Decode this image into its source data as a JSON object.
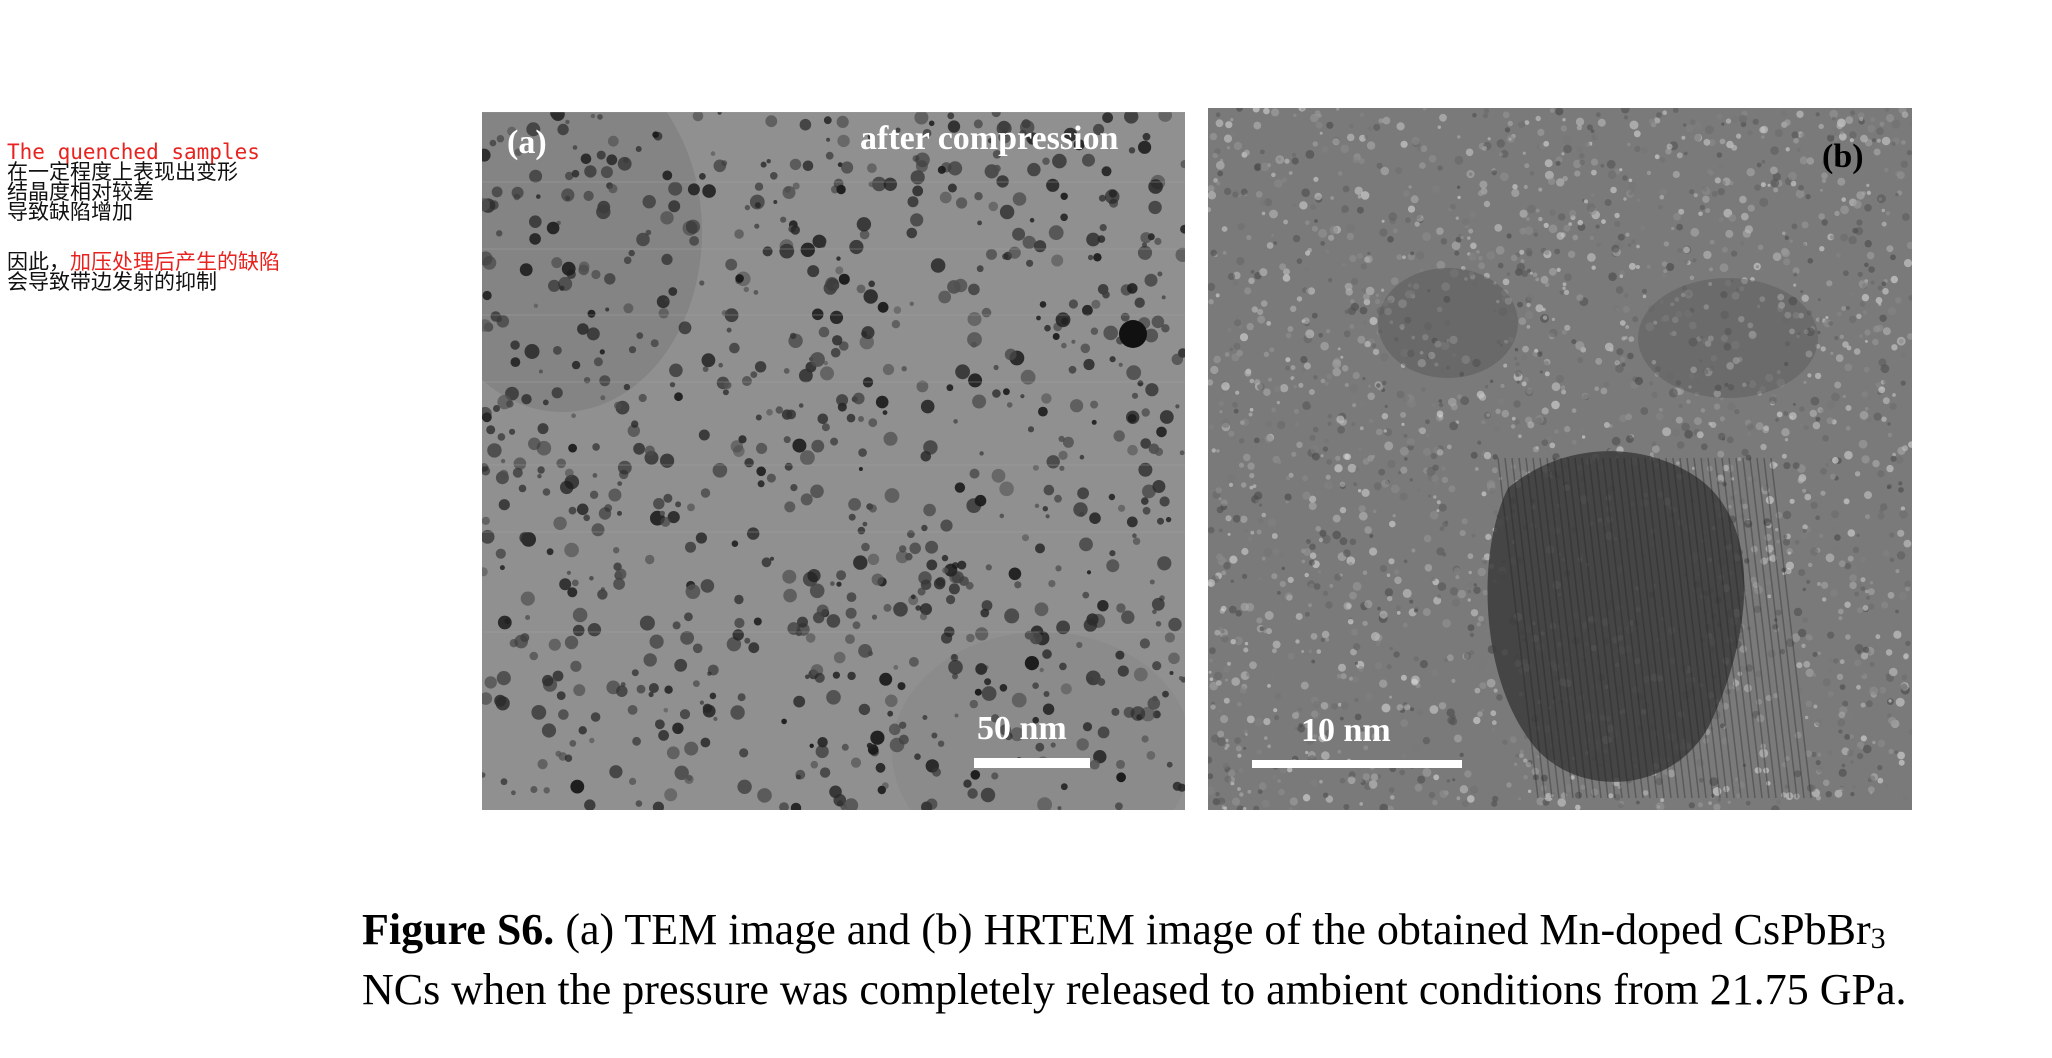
{
  "notes": {
    "line1": "The quenched samples",
    "line2": "在一定程度上表现出变形",
    "line3": "结晶度相对较差",
    "line4": "导致缺陷增加",
    "line5_prefix": "因此，",
    "line5_highlight": "加压处理后产生的缺陷",
    "line6": "会导致带边发射的抑制"
  },
  "panel_a": {
    "label": "(a)",
    "title": "after compression",
    "scale_bar": "50 nm"
  },
  "panel_b": {
    "label": "(b)",
    "scale_bar": "10 nm"
  },
  "caption": {
    "bold_prefix": "Figure S6.",
    "line1_text": " (a) TEM image and (b) HRTEM image of the obtained Mn-doped CsPbBr",
    "line1_sub": "3",
    "line2_text": "NCs when the pressure was completely released to ambient conditions from 21.75 GPa."
  },
  "colors": {
    "annotation_red": "#e8231f",
    "tem_background": "#8f8f8f",
    "hrtem_background": "#7d7d7d"
  }
}
